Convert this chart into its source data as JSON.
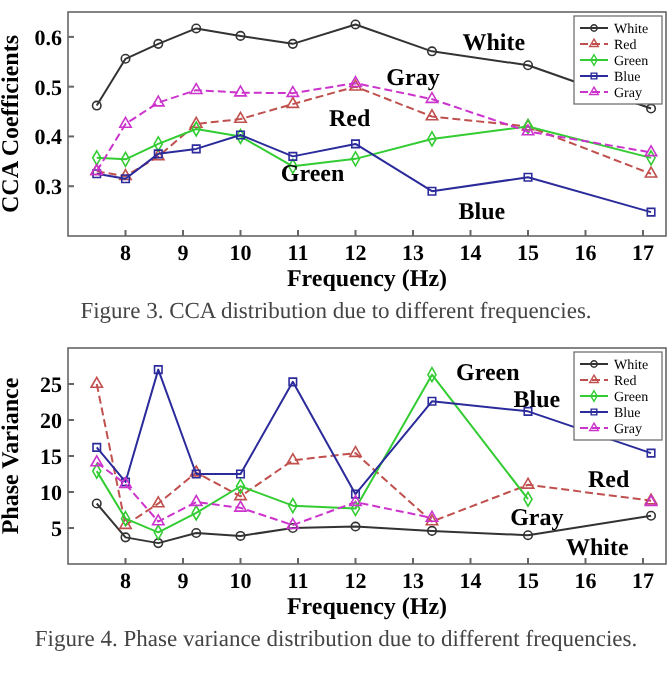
{
  "chart_data": [
    {
      "type": "line",
      "xlabel": "Frequency (Hz)",
      "ylabel": "CCA Coefficients",
      "x": [
        7.5,
        8,
        8.57,
        9.23,
        10,
        10.91,
        12,
        13.33,
        15,
        17.14
      ],
      "xlim": [
        7,
        17.4
      ],
      "ylim": [
        0.2,
        0.65
      ],
      "xticks": [
        8,
        9,
        10,
        11,
        12,
        13,
        14,
        15,
        16,
        17
      ],
      "yticks": [
        0.3,
        0.4,
        0.5,
        0.6
      ],
      "legend": "top right",
      "series": [
        {
          "name": "White",
          "color": "#333333",
          "marker": "circle",
          "line_style": "solid",
          "values": [
            0.462,
            0.556,
            0.586,
            0.617,
            0.602,
            0.586,
            0.625,
            0.571,
            0.543,
            0.456
          ]
        },
        {
          "name": "Red",
          "color": "#c0504d",
          "marker": "triangle",
          "line_style": "dashed",
          "values": [
            0.33,
            0.32,
            0.36,
            0.425,
            0.435,
            0.465,
            0.5,
            0.44,
            0.42,
            0.325
          ]
        },
        {
          "name": "Green",
          "color": "#33cc33",
          "marker": "diamond",
          "line_style": "solid",
          "values": [
            0.357,
            0.354,
            0.385,
            0.415,
            0.4,
            0.34,
            0.355,
            0.395,
            0.42,
            0.357
          ]
        },
        {
          "name": "Blue",
          "color": "#2b2b9b",
          "marker": "square",
          "line_style": "solid",
          "values": [
            0.325,
            0.315,
            0.365,
            0.375,
            0.403,
            0.36,
            0.385,
            0.29,
            0.318,
            0.248
          ]
        },
        {
          "name": "Gray",
          "color": "#cc33cc",
          "marker": "triangle",
          "line_style": "dashed",
          "values": [
            0.33,
            0.425,
            0.468,
            0.493,
            0.488,
            0.487,
            0.507,
            0.475,
            0.41,
            0.368
          ]
        }
      ],
      "annotations": [
        "Figure 3. CCA distribution due to different frequencies."
      ]
    },
    {
      "type": "line",
      "xlabel": "Frequency (Hz)",
      "ylabel": "Phase Variance",
      "x": [
        7.5,
        8,
        8.57,
        9.23,
        10,
        10.91,
        12,
        13.33,
        15,
        17.14
      ],
      "xlim": [
        7,
        17.4
      ],
      "ylim": [
        0,
        30
      ],
      "xticks": [
        8,
        9,
        10,
        11,
        12,
        13,
        14,
        15,
        16,
        17
      ],
      "yticks": [
        5,
        10,
        15,
        20,
        25
      ],
      "legend": "top right",
      "series": [
        {
          "name": "White",
          "color": "#333333",
          "marker": "circle",
          "line_style": "solid",
          "values": [
            8.4,
            3.7,
            2.9,
            4.3,
            3.9,
            5,
            5.2,
            4.6,
            4,
            6.7
          ]
        },
        {
          "name": "Red",
          "color": "#c0504d",
          "marker": "triangle",
          "line_style": "dashed",
          "values": [
            25,
            5.4,
            8.4,
            12.7,
            9.4,
            14.4,
            15.4,
            5.9,
            11,
            8.8
          ]
        },
        {
          "name": "Green",
          "color": "#33cc33",
          "marker": "diamond",
          "line_style": "solid",
          "values": [
            12.9,
            6.3,
            4.4,
            7.1,
            10.8,
            8.1,
            7.7,
            26.3,
            9,
            null
          ]
        },
        {
          "name": "Blue",
          "color": "#2b2b9b",
          "marker": "square",
          "line_style": "solid",
          "values": [
            16.2,
            11.4,
            27,
            12.5,
            12.5,
            25.3,
            9.7,
            22.6,
            21.2,
            15.4
          ]
        },
        {
          "name": "Gray",
          "color": "#cc33cc",
          "marker": "triangle",
          "line_style": "dashed",
          "values": [
            14.1,
            11.1,
            5.9,
            8.6,
            7.8,
            5.4,
            8.6,
            6.4,
            null,
            8.6
          ]
        }
      ],
      "annotations": [
        "Figure 4. Phase variance distribution due to different frequencies."
      ]
    }
  ]
}
